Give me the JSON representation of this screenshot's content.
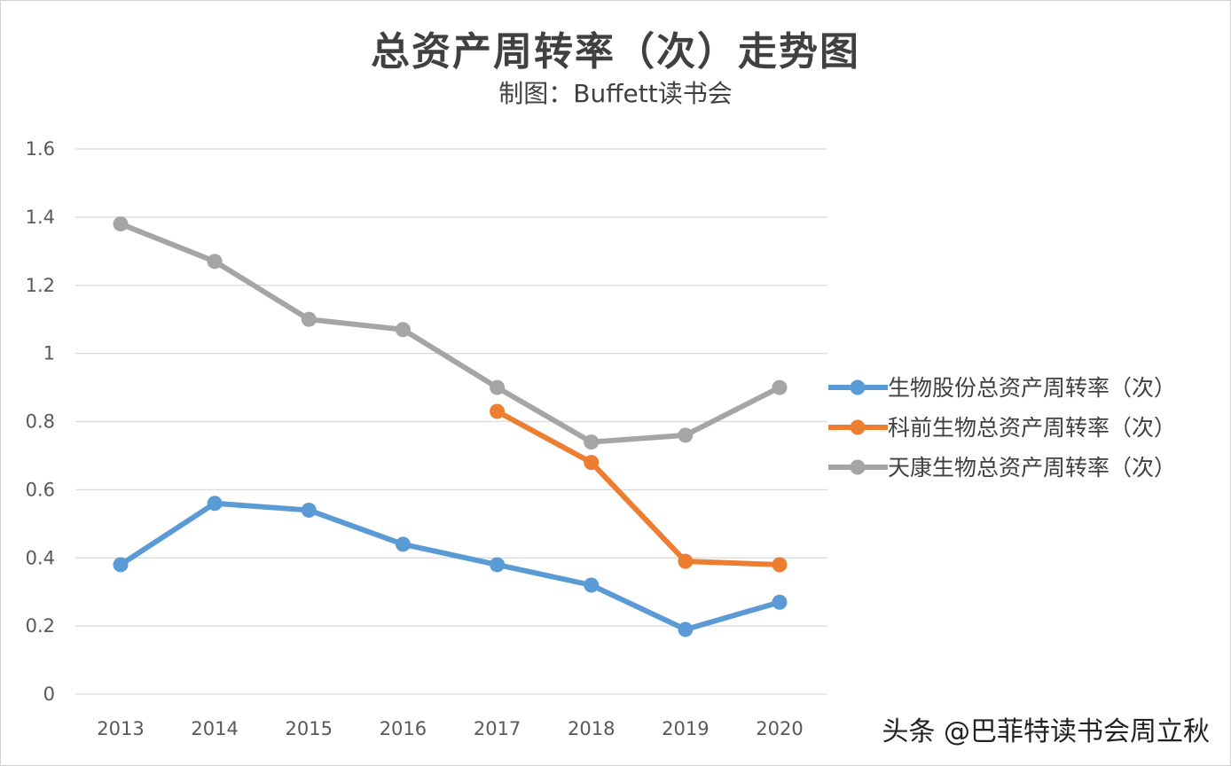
{
  "chart_data": {
    "type": "line",
    "title": "总资产周转率（次）走势图",
    "subtitle": "制图：Buffett读书会",
    "categories": [
      "2013",
      "2014",
      "2015",
      "2016",
      "2017",
      "2018",
      "2019",
      "2020"
    ],
    "y_ticks": [
      "0",
      "0.2",
      "0.4",
      "0.6",
      "0.8",
      "1",
      "1.2",
      "1.4",
      "1.6"
    ],
    "ylim": [
      0,
      1.6
    ],
    "grid": true,
    "legend_position": "right",
    "series": [
      {
        "name": "生物股份总资产周转率（次）",
        "color": "#5b9bd5",
        "values": [
          0.38,
          0.56,
          0.54,
          0.44,
          0.38,
          0.32,
          0.19,
          0.27
        ]
      },
      {
        "name": "科前生物总资产周转率（次）",
        "color": "#ed7d31",
        "values": [
          null,
          null,
          null,
          null,
          0.83,
          0.68,
          0.39,
          0.38
        ]
      },
      {
        "name": "天康生物总资产周转率（次）",
        "color": "#a5a5a5",
        "values": [
          1.38,
          1.27,
          1.1,
          1.07,
          0.9,
          0.74,
          0.76,
          0.9
        ]
      }
    ]
  },
  "watermark": "头条 @巴菲特读书会周立秋"
}
